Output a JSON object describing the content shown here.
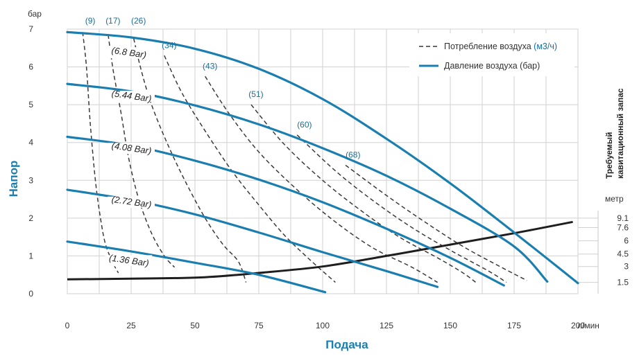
{
  "chart_data": {
    "type": "line",
    "xlabel": "Подача",
    "x_unit": "л/мин",
    "ylabel": "Напор",
    "y_unit": "бар",
    "xlim": [
      0,
      200
    ],
    "ylim": [
      0,
      7
    ],
    "x_ticks": [
      "0",
      "25",
      "50",
      "75",
      "100",
      "125",
      "150",
      "175",
      "200"
    ],
    "y_ticks": [
      "0",
      "1",
      "2",
      "3",
      "4",
      "5",
      "6",
      "7"
    ],
    "grid": true,
    "legend": {
      "position": "top-right",
      "air_consumption": {
        "label": "Потребление воздуха ",
        "unit": "(м3/ч)"
      },
      "air_pressure": {
        "label": "Давление воздуха (бар)"
      }
    },
    "npsh": {
      "title_line1": "Требуемый",
      "title_line2": "кавитационный запас",
      "unit": "метр",
      "ticks": [
        {
          "label": "9.1",
          "y": 2.0
        },
        {
          "label": "7.6",
          "y": 1.75
        },
        {
          "label": "6",
          "y": 1.4
        },
        {
          "label": "4.5",
          "y": 1.05
        },
        {
          "label": "3",
          "y": 0.72
        },
        {
          "label": "1.5",
          "y": 0.3
        }
      ],
      "curve": [
        [
          0,
          0.38
        ],
        [
          25,
          0.4
        ],
        [
          52,
          0.43
        ],
        [
          75,
          0.55
        ],
        [
          100,
          0.72
        ],
        [
          125,
          1.0
        ],
        [
          150,
          1.3
        ],
        [
          175,
          1.6
        ],
        [
          198,
          1.9
        ]
      ]
    },
    "pressure_curves": [
      {
        "label": "(6.8 Bar)",
        "label_pos": [
          24,
          6.3
        ],
        "points": [
          [
            0,
            6.92
          ],
          [
            25,
            6.78
          ],
          [
            50,
            6.48
          ],
          [
            75,
            5.95
          ],
          [
            100,
            5.15
          ],
          [
            125,
            4.1
          ],
          [
            150,
            2.92
          ],
          [
            175,
            1.62
          ],
          [
            200,
            0.28
          ]
        ]
      },
      {
        "label": "(5.44 Bar)",
        "label_pos": [
          25,
          5.15
        ],
        "points": [
          [
            0,
            5.55
          ],
          [
            25,
            5.35
          ],
          [
            50,
            4.98
          ],
          [
            75,
            4.48
          ],
          [
            100,
            3.85
          ],
          [
            125,
            3.12
          ],
          [
            150,
            2.25
          ],
          [
            175,
            1.25
          ],
          [
            188,
            0.32
          ]
        ]
      },
      {
        "label": "(4.08 Bar)",
        "label_pos": [
          25,
          3.77
        ],
        "points": [
          [
            0,
            4.15
          ],
          [
            25,
            3.92
          ],
          [
            50,
            3.52
          ],
          [
            75,
            3.02
          ],
          [
            100,
            2.42
          ],
          [
            125,
            1.72
          ],
          [
            150,
            0.95
          ],
          [
            171,
            0.22
          ]
        ]
      },
      {
        "label": "(2.72 Bar)",
        "label_pos": [
          25,
          2.35
        ],
        "points": [
          [
            0,
            2.75
          ],
          [
            25,
            2.48
          ],
          [
            50,
            2.1
          ],
          [
            75,
            1.62
          ],
          [
            100,
            1.1
          ],
          [
            125,
            0.6
          ],
          [
            145,
            0.18
          ]
        ]
      },
      {
        "label": "(1.36 Bar)",
        "label_pos": [
          24,
          0.8
        ],
        "points": [
          [
            0,
            1.38
          ],
          [
            25,
            1.12
          ],
          [
            50,
            0.82
          ],
          [
            75,
            0.5
          ],
          [
            101,
            0.04
          ]
        ]
      }
    ],
    "air_curves": [
      {
        "label": "(9)",
        "label_pos": [
          7,
          7.15
        ],
        "points": [
          [
            6,
            6.92
          ],
          [
            7.5,
            6.0
          ],
          [
            9,
            4.5
          ],
          [
            11,
            3.0
          ],
          [
            13,
            2.0
          ],
          [
            15,
            1.3
          ],
          [
            18,
            0.8
          ],
          [
            20,
            0.55
          ]
        ]
      },
      {
        "label": "(17)",
        "label_pos": [
          15,
          7.15
        ],
        "points": [
          [
            16,
            6.85
          ],
          [
            18,
            5.9
          ],
          [
            21,
            4.8
          ],
          [
            24,
            3.6
          ],
          [
            28,
            2.5
          ],
          [
            33,
            1.6
          ],
          [
            38,
            1.0
          ],
          [
            42,
            0.7
          ]
        ]
      },
      {
        "label": "(26)",
        "label_pos": [
          25,
          7.15
        ],
        "points": [
          [
            26,
            6.75
          ],
          [
            29,
            5.9
          ],
          [
            33,
            5.0
          ],
          [
            39,
            4.0
          ],
          [
            46,
            3.0
          ],
          [
            54,
            2.0
          ],
          [
            61,
            1.3
          ],
          [
            67,
            0.85
          ],
          [
            70,
            0.3
          ]
        ]
      },
      {
        "label": "(34)",
        "label_pos": [
          37,
          6.5
        ],
        "points": [
          [
            38,
            6.3
          ],
          [
            45,
            5.3
          ],
          [
            55,
            4.2
          ],
          [
            65,
            3.2
          ],
          [
            75,
            2.35
          ],
          [
            85,
            1.55
          ],
          [
            95,
            0.9
          ],
          [
            105,
            0.3
          ]
        ]
      },
      {
        "label": "(43)",
        "label_pos": [
          53,
          5.95
        ],
        "points": [
          [
            54,
            5.75
          ],
          [
            63,
            4.8
          ],
          [
            75,
            3.75
          ],
          [
            90,
            2.75
          ],
          [
            105,
            1.9
          ],
          [
            120,
            1.2
          ],
          [
            135,
            0.7
          ],
          [
            145,
            0.3
          ]
        ]
      },
      {
        "label": "(51)",
        "label_pos": [
          71,
          5.2
        ],
        "points": [
          [
            72,
            5.0
          ],
          [
            85,
            3.95
          ],
          [
            100,
            3.0
          ],
          [
            115,
            2.2
          ],
          [
            130,
            1.5
          ],
          [
            145,
            0.95
          ],
          [
            155,
            0.55
          ],
          [
            160,
            0.3
          ]
        ]
      },
      {
        "label": "(60)",
        "label_pos": [
          90,
          4.4
        ],
        "points": [
          [
            90,
            4.2
          ],
          [
            105,
            3.25
          ],
          [
            120,
            2.45
          ],
          [
            135,
            1.75
          ],
          [
            150,
            1.15
          ],
          [
            165,
            0.6
          ],
          [
            172,
            0.3
          ]
        ]
      },
      {
        "label": "(68)",
        "label_pos": [
          109,
          3.6
        ],
        "points": [
          [
            109,
            3.4
          ],
          [
            125,
            2.6
          ],
          [
            140,
            1.9
          ],
          [
            155,
            1.25
          ],
          [
            170,
            0.7
          ],
          [
            180,
            0.35
          ]
        ]
      }
    ]
  }
}
